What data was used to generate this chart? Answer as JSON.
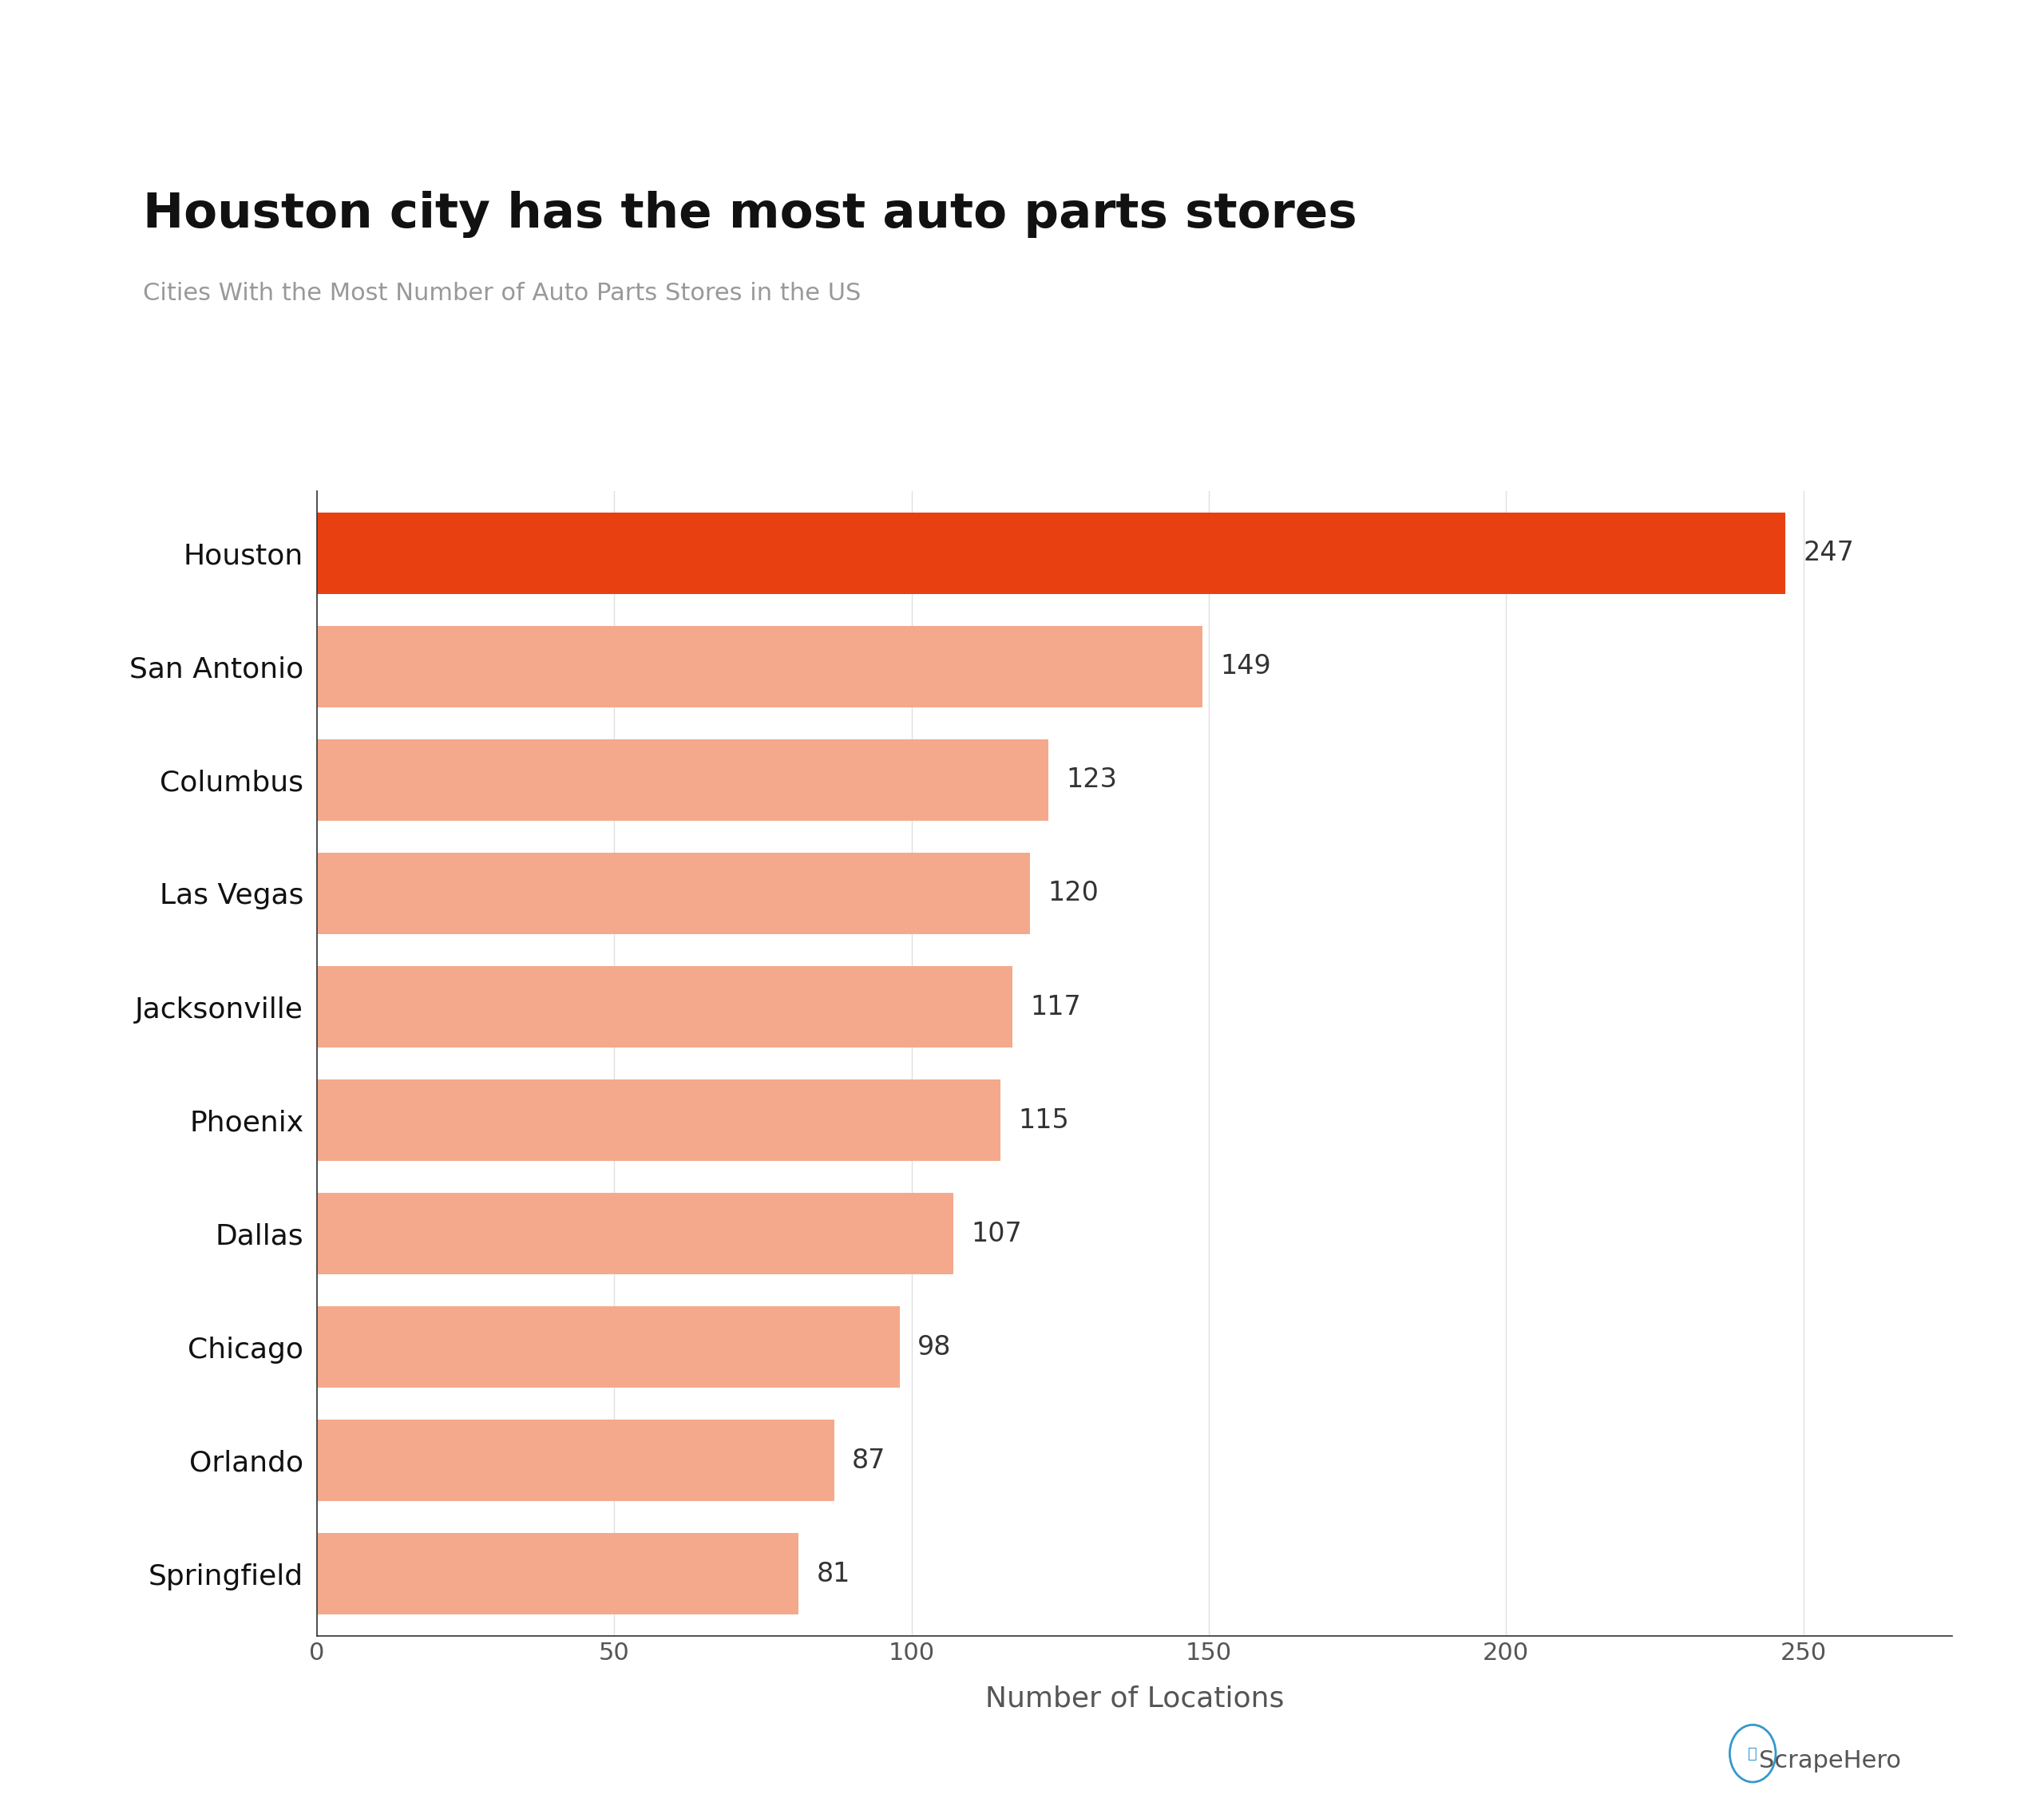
{
  "title": "Houston city has the most auto parts stores",
  "subtitle": "Cities With the Most Number of Auto Parts Stores in the US",
  "xlabel": "Number of Locations",
  "categories": [
    "Houston",
    "San Antonio",
    "Columbus",
    "Las Vegas",
    "Jacksonville",
    "Phoenix",
    "Dallas",
    "Chicago",
    "Orlando",
    "Springfield"
  ],
  "values": [
    247,
    149,
    123,
    120,
    117,
    115,
    107,
    98,
    87,
    81
  ],
  "bar_colors": [
    "#E84010",
    "#F5A98C",
    "#F5A98C",
    "#F5A98C",
    "#F5A98C",
    "#F5A98C",
    "#F5A98C",
    "#F5A98C",
    "#F5A98C",
    "#F5A98C"
  ],
  "xlim": [
    0,
    275
  ],
  "xticks": [
    0,
    50,
    100,
    150,
    200,
    250
  ],
  "title_fontsize": 44,
  "subtitle_fontsize": 22,
  "ylabel_fontsize": 26,
  "xlabel_fontsize": 26,
  "tick_fontsize": 22,
  "value_fontsize": 24,
  "background_color": "#ffffff",
  "grid_color": "#e0e0e0",
  "bar_height": 0.72
}
